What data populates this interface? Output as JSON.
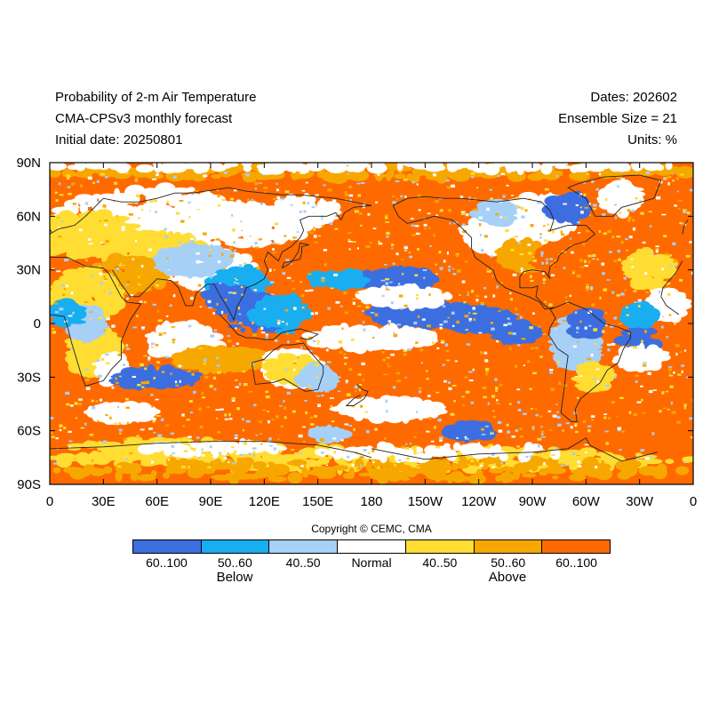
{
  "header": {
    "title": "Probability of 2-m Air Temperature",
    "model": "CMA-CPSv3 monthly forecast",
    "initial_date": "Initial date: 20250801",
    "dates": "Dates: 202602",
    "ensemble": "Ensemble Size = 21",
    "units": "Units: %"
  },
  "map": {
    "lat_labels": [
      "90N",
      "60N",
      "30N",
      "0",
      "30S",
      "60S",
      "90S"
    ],
    "lon_labels": [
      "0",
      "30E",
      "60E",
      "90E",
      "120E",
      "150E",
      "180",
      "150W",
      "120W",
      "90W",
      "60W",
      "30W",
      "0"
    ],
    "colors": {
      "below_strong": "#3d6ee0",
      "below_mid": "#19aef0",
      "below_weak": "#a7d0f7",
      "normal": "#ffffff",
      "above_weak": "#ffdd33",
      "above_mid": "#f7a800",
      "above_strong": "#ff6a00",
      "coast": "#222222"
    }
  },
  "copyright": "Copyright © CEMC, CMA",
  "legend": {
    "bins": [
      {
        "label": "60..100",
        "color": "#3d6ee0"
      },
      {
        "label": "50..60",
        "color": "#19aef0"
      },
      {
        "label": "40..50",
        "color": "#a7d0f7"
      },
      {
        "label": "Normal",
        "color": "#ffffff"
      },
      {
        "label": "40..50",
        "color": "#ffdd33"
      },
      {
        "label": "50..60",
        "color": "#f7a800"
      },
      {
        "label": "60..100",
        "color": "#ff6a00"
      }
    ],
    "below_label": "Below",
    "above_label": "Above"
  }
}
